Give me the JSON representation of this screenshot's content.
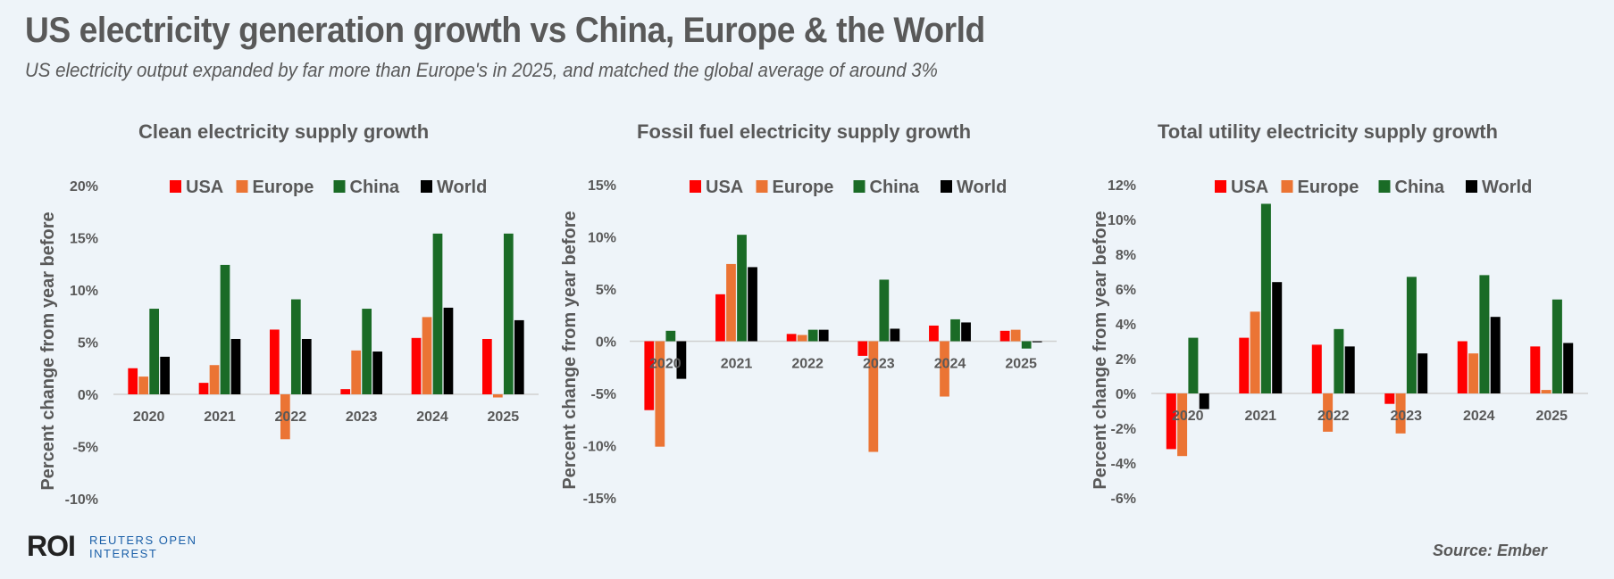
{
  "header": {
    "title": "US electricity generation growth vs China, Europe & the World",
    "subtitle": "US electricity output expanded by far more than Europe's in 2025, and matched the global average of around 3%"
  },
  "colors": {
    "USA": "#ff0000",
    "Europe": "#eb7434",
    "China": "#1a6b26",
    "World": "#000000",
    "axis": "#d0d0d0"
  },
  "footer": {
    "logo": "ROI",
    "logo_line1": "REUTERS OPEN",
    "logo_line2": "INTEREST",
    "source": "Source:  Ember"
  },
  "chart_data": [
    {
      "type": "bar",
      "title": "Clean electricity supply growth",
      "xlabel": "",
      "ylabel": "Percent change from year before",
      "categories": [
        "2020",
        "2021",
        "2022",
        "2023",
        "2024",
        "2025"
      ],
      "ylim": [
        -10,
        20
      ],
      "yticks": [
        -10,
        -5,
        0,
        5,
        10,
        15,
        20
      ],
      "ytick_labels": [
        "-10%",
        "-5%",
        "0%",
        "5%",
        "10%",
        "15%",
        "20%"
      ],
      "legend": [
        "USA",
        "Europe",
        "China",
        "World"
      ],
      "legend_position": "top",
      "grid": false,
      "series": [
        {
          "name": "USA",
          "values": [
            2.5,
            1.1,
            6.2,
            0.5,
            5.4,
            5.3
          ]
        },
        {
          "name": "Europe",
          "values": [
            1.7,
            2.8,
            -4.3,
            4.2,
            7.4,
            -0.3
          ]
        },
        {
          "name": "China",
          "values": [
            8.2,
            12.4,
            9.1,
            8.2,
            15.4,
            15.4
          ]
        },
        {
          "name": "World",
          "values": [
            3.6,
            5.3,
            5.3,
            4.1,
            8.3,
            7.1
          ]
        }
      ]
    },
    {
      "type": "bar",
      "title": "Fossil fuel electricity supply growth",
      "xlabel": "",
      "ylabel": "Percent change from year before",
      "categories": [
        "2020",
        "2021",
        "2022",
        "2023",
        "2024",
        "2025"
      ],
      "ylim": [
        -15,
        15
      ],
      "yticks": [
        -15,
        -10,
        -5,
        0,
        5,
        10,
        15
      ],
      "ytick_labels": [
        "-15%",
        "-10%",
        "-5%",
        "0%",
        "5%",
        "10%",
        "15%"
      ],
      "legend": [
        "USA",
        "Europe",
        "China",
        "World"
      ],
      "legend_position": "top",
      "grid": false,
      "series": [
        {
          "name": "USA",
          "values": [
            -6.6,
            4.5,
            0.7,
            -1.4,
            1.5,
            1.0
          ]
        },
        {
          "name": "Europe",
          "values": [
            -10.1,
            7.4,
            0.6,
            -10.6,
            -5.3,
            1.1
          ]
        },
        {
          "name": "China",
          "values": [
            1.0,
            10.2,
            1.1,
            5.9,
            2.1,
            -0.7
          ]
        },
        {
          "name": "World",
          "values": [
            -3.6,
            7.1,
            1.1,
            1.2,
            1.8,
            -0.1
          ]
        }
      ]
    },
    {
      "type": "bar",
      "title": "Total utility electricity supply growth",
      "xlabel": "",
      "ylabel": "Percent change from year before",
      "categories": [
        "2020",
        "2021",
        "2022",
        "2023",
        "2024",
        "2025"
      ],
      "ylim": [
        -6,
        12
      ],
      "yticks": [
        -6,
        -4,
        -2,
        0,
        2,
        4,
        6,
        8,
        10,
        12
      ],
      "ytick_labels": [
        "-6%",
        "-4%",
        "-2%",
        "0%",
        "2%",
        "4%",
        "6%",
        "8%",
        "10%",
        "12%"
      ],
      "legend": [
        "USA",
        "Europe",
        "China",
        "World"
      ],
      "legend_position": "top",
      "grid": false,
      "series": [
        {
          "name": "USA",
          "values": [
            -3.2,
            3.2,
            2.8,
            -0.6,
            3.0,
            2.7
          ]
        },
        {
          "name": "Europe",
          "values": [
            -3.6,
            4.7,
            -2.2,
            -2.3,
            2.3,
            0.2
          ]
        },
        {
          "name": "China",
          "values": [
            3.2,
            10.9,
            3.7,
            6.7,
            6.8,
            5.4
          ]
        },
        {
          "name": "World",
          "values": [
            -0.9,
            6.4,
            2.7,
            2.3,
            4.4,
            2.9
          ]
        }
      ]
    }
  ]
}
